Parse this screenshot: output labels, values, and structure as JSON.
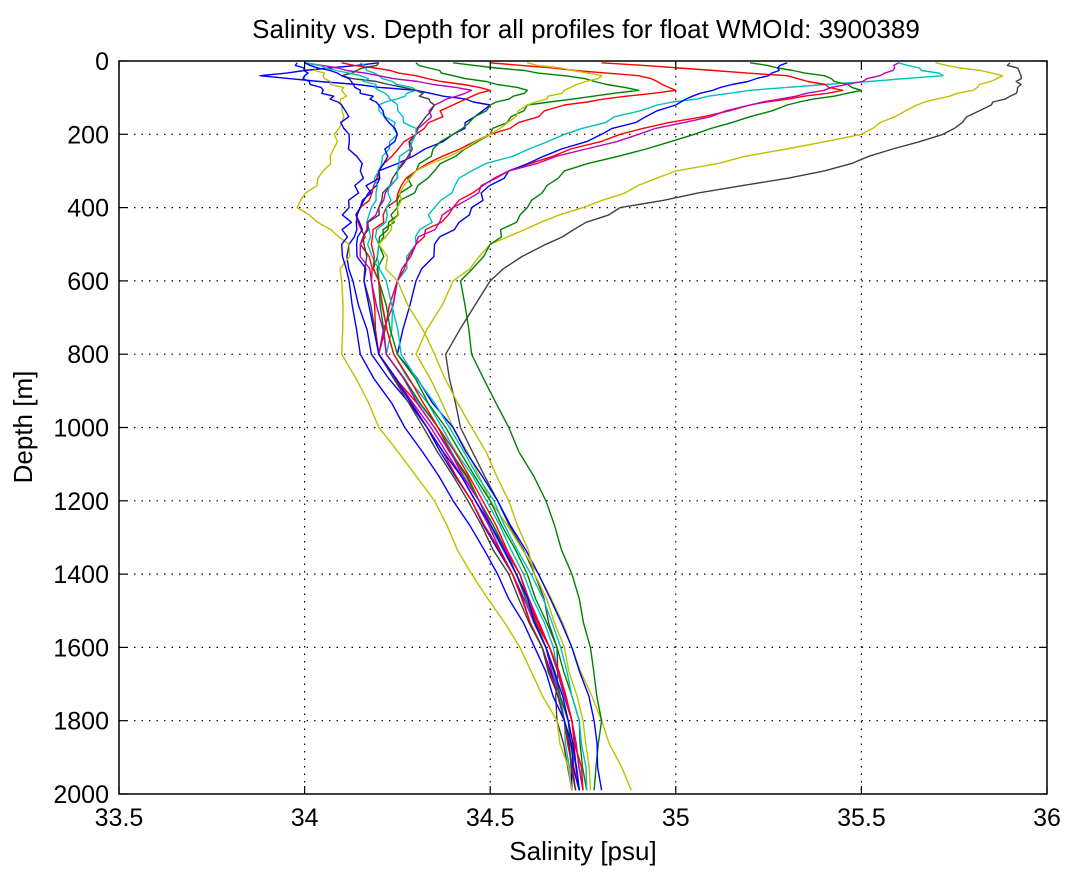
{
  "chart_data": {
    "type": "line",
    "title": "Salinity vs. Depth for all profiles for float WMOId: 3900389",
    "xlabel": "Salinity [psu]",
    "ylabel": "Depth [m]",
    "xlim": [
      33.5,
      36
    ],
    "ylim": [
      2000,
      0
    ],
    "y_reversed": true,
    "xticks": [
      "33.5",
      "34",
      "34.5",
      "35",
      "35.5",
      "36"
    ],
    "yticks": [
      "0",
      "200",
      "400",
      "600",
      "800",
      "1000",
      "1200",
      "1400",
      "1600",
      "1800",
      "2000"
    ],
    "grid": true,
    "colors": [
      "#0000ff",
      "#008000",
      "#ff0000",
      "#00bfbf",
      "#bf00bf",
      "#bfbf00",
      "#404040"
    ],
    "depths": [
      5,
      40,
      80,
      120,
      200,
      300,
      400,
      500,
      600,
      800,
      1000,
      1200,
      1400,
      1600,
      1800,
      1990
    ],
    "series": [
      {
        "color": "#404040",
        "salinity": [
          35.9,
          35.93,
          35.92,
          35.85,
          35.72,
          35.4,
          34.85,
          34.65,
          34.5,
          34.38,
          34.42,
          34.52,
          34.62,
          34.68,
          34.68,
          34.72
        ]
      },
      {
        "color": "#bfbf00",
        "salinity": [
          35.7,
          35.88,
          35.8,
          35.65,
          35.5,
          35.0,
          34.75,
          34.5,
          34.4,
          34.3,
          34.4,
          34.5,
          34.63,
          34.72,
          34.8,
          34.88
        ]
      },
      {
        "color": "#00bfbf",
        "salinity": [
          35.6,
          35.72,
          35.2,
          34.95,
          34.7,
          34.45,
          34.35,
          34.3,
          34.25,
          34.22,
          34.36,
          34.47,
          34.57,
          34.65,
          34.7,
          34.72
        ]
      },
      {
        "color": "#008000",
        "salinity": [
          35.2,
          35.4,
          35.5,
          35.3,
          35.05,
          34.7,
          34.6,
          34.5,
          34.42,
          34.45,
          34.55,
          34.65,
          34.72,
          34.77,
          34.8,
          34.78
        ]
      },
      {
        "color": "#ff0000",
        "salinity": [
          34.8,
          35.3,
          35.45,
          35.2,
          34.85,
          34.55,
          34.4,
          34.3,
          34.25,
          34.2,
          34.35,
          34.47,
          34.57,
          34.66,
          34.72,
          34.74
        ]
      },
      {
        "color": "#0000ff",
        "salinity": [
          35.3,
          35.25,
          35.1,
          35.0,
          34.8,
          34.55,
          34.45,
          34.35,
          34.3,
          34.25,
          34.4,
          34.52,
          34.63,
          34.72,
          34.78,
          34.8
        ]
      },
      {
        "color": "#bf00bf",
        "salinity": [
          35.6,
          35.55,
          35.4,
          35.2,
          34.9,
          34.55,
          34.4,
          34.3,
          34.25,
          34.2,
          34.34,
          34.46,
          34.56,
          34.65,
          34.71,
          34.74
        ]
      },
      {
        "color": "#0000ff",
        "salinity": [
          34.2,
          33.88,
          34.3,
          34.5,
          34.4,
          34.2,
          34.15,
          34.12,
          34.13,
          34.18,
          34.33,
          34.45,
          34.56,
          34.64,
          34.7,
          34.72
        ]
      },
      {
        "color": "#bfbf00",
        "salinity": [
          34.0,
          34.05,
          34.1,
          34.1,
          34.08,
          34.05,
          33.98,
          34.12,
          34.1,
          34.1,
          34.2,
          34.35,
          34.45,
          34.58,
          34.68,
          34.72
        ]
      },
      {
        "color": "#008000",
        "salinity": [
          34.3,
          34.4,
          34.6,
          34.5,
          34.4,
          34.3,
          34.25,
          34.2,
          34.2,
          34.22,
          34.36,
          34.47,
          34.57,
          34.65,
          34.71,
          34.74
        ]
      },
      {
        "color": "#ff0000",
        "salinity": [
          34.1,
          34.3,
          34.5,
          34.4,
          34.3,
          34.2,
          34.15,
          34.15,
          34.18,
          34.2,
          34.33,
          34.45,
          34.56,
          34.64,
          34.7,
          34.73
        ]
      },
      {
        "color": "#00bfbf",
        "salinity": [
          34.15,
          34.2,
          34.3,
          34.2,
          34.25,
          34.2,
          34.18,
          34.17,
          34.2,
          34.24,
          34.37,
          34.49,
          34.59,
          34.67,
          34.72,
          34.75
        ]
      },
      {
        "color": "#bf00bf",
        "salinity": [
          34.0,
          34.2,
          34.45,
          34.35,
          34.3,
          34.25,
          34.2,
          34.15,
          34.18,
          34.22,
          34.35,
          34.47,
          34.58,
          34.66,
          34.72,
          34.75
        ]
      },
      {
        "color": "#404040",
        "salinity": [
          34.2,
          34.1,
          34.3,
          34.35,
          34.3,
          34.25,
          34.2,
          34.16,
          34.16,
          34.2,
          34.32,
          34.44,
          34.55,
          34.64,
          34.7,
          34.73
        ]
      },
      {
        "color": "#0000ff",
        "salinity": [
          33.98,
          34.0,
          34.05,
          34.1,
          34.12,
          34.15,
          34.12,
          34.1,
          34.12,
          34.15,
          34.27,
          34.4,
          34.52,
          34.62,
          34.7,
          34.74
        ]
      },
      {
        "color": "#008000",
        "salinity": [
          34.4,
          34.7,
          34.9,
          34.6,
          34.5,
          34.35,
          34.25,
          34.2,
          34.2,
          34.25,
          34.38,
          34.5,
          34.6,
          34.68,
          34.74,
          34.76
        ]
      },
      {
        "color": "#ff0000",
        "salinity": [
          34.5,
          34.9,
          35.0,
          34.7,
          34.5,
          34.3,
          34.22,
          34.18,
          34.2,
          34.24,
          34.36,
          34.48,
          34.58,
          34.66,
          34.72,
          34.75
        ]
      },
      {
        "color": "#00bfbf",
        "salinity": [
          34.0,
          34.15,
          34.2,
          34.25,
          34.3,
          34.25,
          34.22,
          34.2,
          34.22,
          34.26,
          34.39,
          34.51,
          34.61,
          34.69,
          34.74,
          34.76
        ]
      },
      {
        "color": "#bfbf00",
        "salinity": [
          34.6,
          34.8,
          34.7,
          34.6,
          34.5,
          34.3,
          34.25,
          34.2,
          34.25,
          34.35,
          34.45,
          34.55,
          34.62,
          34.7,
          34.75,
          34.77
        ]
      },
      {
        "color": "#0000ff",
        "salinity": [
          34.0,
          34.1,
          34.15,
          34.2,
          34.25,
          34.2,
          34.15,
          34.14,
          34.16,
          34.2,
          34.33,
          34.46,
          34.57,
          34.65,
          34.71,
          34.74
        ]
      }
    ]
  }
}
